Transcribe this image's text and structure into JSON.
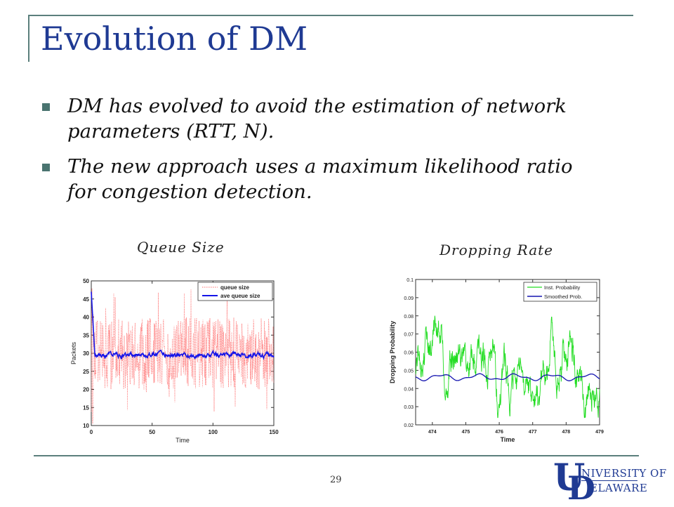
{
  "slide": {
    "title": "Evolution of DM",
    "bullets": [
      "DM has evolved to avoid the estimation of network parameters (RTT, N).",
      "The new approach uses a maximum likelihood ratio for congestion detection."
    ],
    "page_number": "29",
    "logo": {
      "line1": "NIVERSITY OF",
      "line2": "ELAWARE",
      "letters": "UD"
    }
  },
  "chart_data": [
    {
      "type": "line",
      "caption": "Queue Size",
      "xlabel": "Time",
      "ylabel": "Packets",
      "xlim": [
        0,
        150
      ],
      "ylim": [
        10,
        50
      ],
      "xticks": [
        0,
        50,
        100,
        150
      ],
      "yticks": [
        10,
        15,
        20,
        25,
        30,
        35,
        40,
        45,
        50
      ],
      "legend_position": "top-right",
      "series": [
        {
          "name": "queue size",
          "color": "#ff6b6b",
          "style": "dotted",
          "approx_range": [
            20,
            40
          ]
        },
        {
          "name": "ave queue size",
          "color": "#1515e8",
          "style": "solid",
          "approx_level": 29.5
        }
      ]
    },
    {
      "type": "line",
      "caption": "Dropping Rate",
      "xlabel": "Time",
      "ylabel": "Dropping Probability",
      "xlim": [
        473.5,
        479
      ],
      "ylim": [
        0.02,
        0.1
      ],
      "xticks": [
        474,
        475,
        476,
        477,
        478,
        479
      ],
      "yticks": [
        0.02,
        0.03,
        0.04,
        0.05,
        0.06,
        0.07,
        0.08,
        0.09,
        0.1
      ],
      "legend_position": "top-right",
      "series": [
        {
          "name": "Inst. Probability",
          "color": "#22dd22",
          "style": "solid",
          "approx_range": [
            0.025,
            0.085
          ]
        },
        {
          "name": "Smoothed Prob.",
          "color": "#1515b0",
          "style": "solid",
          "approx_level": 0.046
        }
      ]
    }
  ]
}
